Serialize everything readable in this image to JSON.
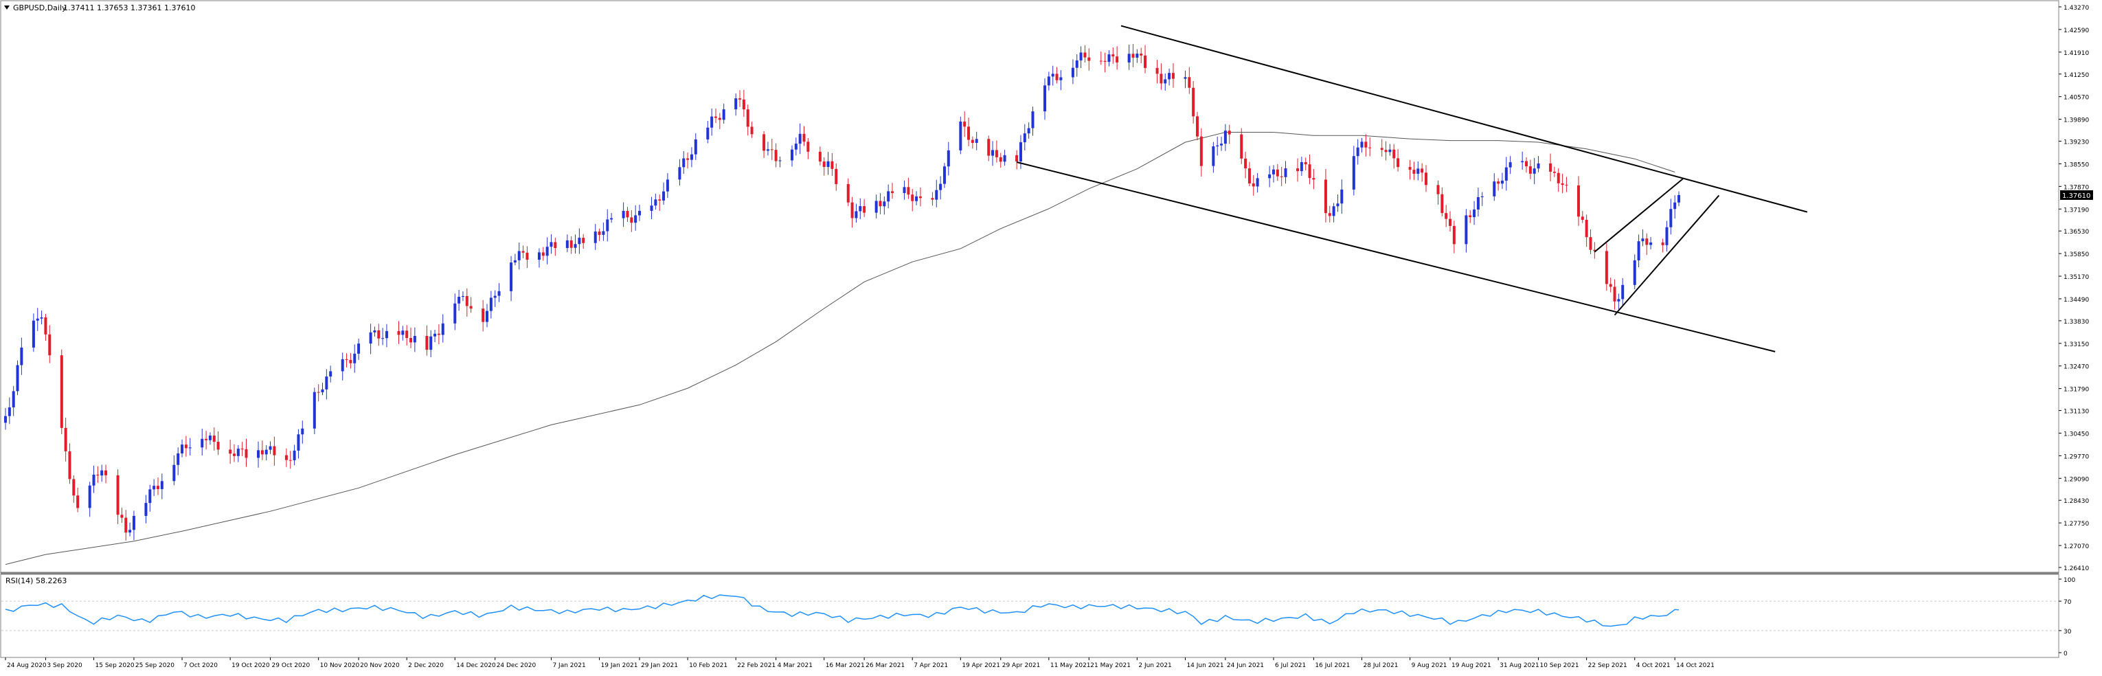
{
  "main_chart": {
    "symbol_label": "GBPUSD,Daily",
    "ohlc_label": "1.37411 1.37653 1.37361 1.37610",
    "current_price_label": "1.37610"
  },
  "rsi_panel": {
    "label": "RSI(14) 58.2263",
    "levels": [
      100,
      70,
      30,
      0
    ]
  },
  "colors": {
    "bull": "#2134d6",
    "bear": "#e21d2b",
    "ma": "#555555",
    "trendline": "#000000",
    "rsi_line": "#1e90ff",
    "grid": "#c9c9c9",
    "background": "#ffffff"
  },
  "chart_data": [
    {
      "type": "candlestick",
      "x_tick_labels": [
        "24 Aug 2020",
        "3 Sep 2020",
        "15 Sep 2020",
        "25 Sep 2020",
        "7 Oct 2020",
        "19 Oct 2020",
        "29 Oct 2020",
        "10 Nov 2020",
        "20 Nov 2020",
        "2 Dec 2020",
        "14 Dec 2020",
        "24 Dec 2020",
        "7 Jan 2021",
        "19 Jan 2021",
        "29 Jan 2021",
        "10 Feb 2021",
        "22 Feb 2021",
        "4 Mar 2021",
        "16 Mar 2021",
        "26 Mar 2021",
        "7 Apr 2021",
        "19 Apr 2021",
        "29 Apr 2021",
        "11 May 2021",
        "21 May 2021",
        "2 Jun 2021",
        "14 Jun 2021",
        "24 Jun 2021",
        "6 Jul 2021",
        "16 Jul 2021",
        "28 Jul 2021",
        "9 Aug 2021",
        "19 Aug 2021",
        "31 Aug 2021",
        "10 Sep 2021",
        "22 Sep 2021",
        "4 Oct 2021",
        "14 Oct 2021"
      ],
      "y_tick_labels": [
        "1.43270",
        "1.42590",
        "1.41910",
        "1.41250",
        "1.40570",
        "1.39890",
        "1.39230",
        "1.38550",
        "1.37870",
        "1.37190",
        "1.36530",
        "1.35850",
        "1.35170",
        "1.34490",
        "1.33830",
        "1.33150",
        "1.32470",
        "1.31790",
        "1.31130",
        "1.30450",
        "1.29770",
        "1.29090",
        "1.28430",
        "1.27750",
        "1.27070",
        "1.26410"
      ],
      "ylim": [
        1.2641,
        1.4327
      ],
      "close_path": [
        [
          "24 Aug 2020",
          1.3085
        ],
        [
          "28 Aug 2020",
          1.33
        ],
        [
          "2 Sep 2020",
          1.34
        ],
        [
          "8 Sep 2020",
          1.299
        ],
        [
          "11 Sep 2020",
          1.28
        ],
        [
          "17 Sep 2020",
          1.295
        ],
        [
          "23 Sep 2020",
          1.274
        ],
        [
          "29 Sep 2020",
          1.287
        ],
        [
          "5 Oct 2020",
          1.296
        ],
        [
          "12 Oct 2020",
          1.305
        ],
        [
          "19 Oct 2020",
          1.298
        ],
        [
          "27 Oct 2020",
          1.3
        ],
        [
          "2 Nov 2020",
          1.295
        ],
        [
          "9 Nov 2020",
          1.315
        ],
        [
          "16 Nov 2020",
          1.326
        ],
        [
          "23 Nov 2020",
          1.333
        ],
        [
          "30 Nov 2020",
          1.335
        ],
        [
          "7 Dec 2020",
          1.33
        ],
        [
          "14 Dec 2020",
          1.345
        ],
        [
          "21 Dec 2020",
          1.34
        ],
        [
          "28 Dec 2020",
          1.356
        ],
        [
          "4 Jan 2021",
          1.36
        ],
        [
          "11 Jan 2021",
          1.361
        ],
        [
          "18 Jan 2021",
          1.364
        ],
        [
          "25 Jan 2021",
          1.37
        ],
        [
          "1 Feb 2021",
          1.371
        ],
        [
          "8 Feb 2021",
          1.385
        ],
        [
          "15 Feb 2021",
          1.396
        ],
        [
          "22 Feb 2021",
          1.407
        ],
        [
          "26 Feb 2021",
          1.394
        ],
        [
          "4 Mar 2021",
          1.388
        ],
        [
          "10 Mar 2021",
          1.392
        ],
        [
          "17 Mar 2021",
          1.386
        ],
        [
          "23 Mar 2021",
          1.37
        ],
        [
          "29 Mar 2021",
          1.374
        ],
        [
          "6 Apr 2021",
          1.377
        ],
        [
          "12 Apr 2021",
          1.373
        ],
        [
          "19 Apr 2021",
          1.398
        ],
        [
          "26 Apr 2021",
          1.387
        ],
        [
          "3 May 2021",
          1.388
        ],
        [
          "10 May 2021",
          1.41
        ],
        [
          "17 May 2021",
          1.416
        ],
        [
          "24 May 2021",
          1.418
        ],
        [
          "1 Jun 2021",
          1.418
        ],
        [
          "8 Jun 2021",
          1.412
        ],
        [
          "15 Jun 2021",
          1.409
        ],
        [
          "18 Jun 2021",
          1.385
        ],
        [
          "24 Jun 2021",
          1.394
        ],
        [
          "1 Jul 2021",
          1.38
        ],
        [
          "8 Jul 2021",
          1.382
        ],
        [
          "14 Jul 2021",
          1.386
        ],
        [
          "20 Jul 2021",
          1.368
        ],
        [
          "26 Jul 2021",
          1.39
        ],
        [
          "2 Aug 2021",
          1.391
        ],
        [
          "9 Aug 2021",
          1.384
        ],
        [
          "16 Aug 2021",
          1.377
        ],
        [
          "20 Aug 2021",
          1.362
        ],
        [
          "27 Aug 2021",
          1.376
        ],
        [
          "3 Sep 2021",
          1.384
        ],
        [
          "10 Sep 2021",
          1.385
        ],
        [
          "16 Sep 2021",
          1.379
        ],
        [
          "21 Sep 2021",
          1.368
        ],
        [
          "29 Sep 2021",
          1.343
        ],
        [
          "5 Oct 2021",
          1.362
        ],
        [
          "11 Oct 2021",
          1.362
        ],
        [
          "14 Oct 2021",
          1.375
        ],
        [
          "15 Oct 2021",
          1.3761
        ]
      ],
      "moving_average_path": [
        [
          "24 Aug 2020",
          1.265
        ],
        [
          "3 Sep 2020",
          1.268
        ],
        [
          "25 Sep 2020",
          1.272
        ],
        [
          "7 Oct 2020",
          1.275
        ],
        [
          "29 Oct 2020",
          1.281
        ],
        [
          "20 Nov 2020",
          1.288
        ],
        [
          "14 Dec 2020",
          1.298
        ],
        [
          "7 Jan 2021",
          1.307
        ],
        [
          "29 Jan 2021",
          1.313
        ],
        [
          "10 Feb 2021",
          1.318
        ],
        [
          "22 Feb 2021",
          1.325
        ],
        [
          "4 Mar 2021",
          1.332
        ],
        [
          "16 Mar 2021",
          1.342
        ],
        [
          "26 Mar 2021",
          1.35
        ],
        [
          "7 Apr 2021",
          1.356
        ],
        [
          "19 Apr 2021",
          1.36
        ],
        [
          "29 Apr 2021",
          1.366
        ],
        [
          "11 May 2021",
          1.372
        ],
        [
          "21 May 2021",
          1.378
        ],
        [
          "2 Jun 2021",
          1.384
        ],
        [
          "14 Jun 2021",
          1.392
        ],
        [
          "24 Jun 2021",
          1.395
        ],
        [
          "6 Jul 2021",
          1.395
        ],
        [
          "16 Jul 2021",
          1.394
        ],
        [
          "28 Jul 2021",
          1.394
        ],
        [
          "9 Aug 2021",
          1.393
        ],
        [
          "19 Aug 2021",
          1.3925
        ],
        [
          "31 Aug 2021",
          1.3925
        ],
        [
          "10 Sep 2021",
          1.392
        ],
        [
          "22 Sep 2021",
          1.39
        ],
        [
          "4 Oct 2021",
          1.387
        ],
        [
          "14 Oct 2021",
          1.383
        ]
      ],
      "trendlines": [
        [
          [
            "29 May 2021",
            1.427
          ],
          [
            "16 Nov 2021",
            1.371
          ]
        ],
        [
          [
            "3 May 2021",
            1.386
          ],
          [
            "8 Nov 2021",
            1.329
          ]
        ],
        [
          [
            "24 Sep 2021",
            1.359
          ],
          [
            "16 Oct 2021",
            1.381
          ]
        ],
        [
          [
            "29 Sep 2021",
            1.34
          ],
          [
            "25 Oct 2021",
            1.376
          ]
        ]
      ],
      "last_price": 1.3761
    },
    {
      "type": "line",
      "title": "RSI(14) 58.2263",
      "ylim": [
        0,
        100
      ],
      "reference_levels": [
        70,
        30
      ],
      "last_value": 58.2263,
      "values_path": [
        [
          "24 Aug 2020",
          56
        ],
        [
          "31 Aug 2020",
          66
        ],
        [
          "7 Sep 2020",
          64
        ],
        [
          "14 Sep 2020",
          40
        ],
        [
          "21 Sep 2020",
          50
        ],
        [
          "28 Sep 2020",
          42
        ],
        [
          "5 Oct 2020",
          56
        ],
        [
          "12 Oct 2020",
          48
        ],
        [
          "19 Oct 2020",
          52
        ],
        [
          "26 Oct 2020",
          46
        ],
        [
          "2 Nov 2020",
          44
        ],
        [
          "9 Nov 2020",
          57
        ],
        [
          "16 Nov 2020",
          58
        ],
        [
          "23 Nov 2020",
          62
        ],
        [
          "30 Nov 2020",
          58
        ],
        [
          "7 Dec 2020",
          48
        ],
        [
          "14 Dec 2020",
          56
        ],
        [
          "21 Dec 2020",
          50
        ],
        [
          "28 Dec 2020",
          62
        ],
        [
          "4 Jan 2021",
          58
        ],
        [
          "11 Jan 2021",
          55
        ],
        [
          "18 Jan 2021",
          60
        ],
        [
          "25 Jan 2021",
          58
        ],
        [
          "1 Feb 2021",
          62
        ],
        [
          "8 Feb 2021",
          68
        ],
        [
          "15 Feb 2021",
          76
        ],
        [
          "22 Feb 2021",
          78
        ],
        [
          "1 Mar 2021",
          58
        ],
        [
          "8 Mar 2021",
          52
        ],
        [
          "15 Mar 2021",
          54
        ],
        [
          "22 Mar 2021",
          44
        ],
        [
          "29 Mar 2021",
          48
        ],
        [
          "5 Apr 2021",
          52
        ],
        [
          "12 Apr 2021",
          50
        ],
        [
          "19 Apr 2021",
          62
        ],
        [
          "26 Apr 2021",
          56
        ],
        [
          "3 May 2021",
          54
        ],
        [
          "10 May 2021",
          66
        ],
        [
          "17 May 2021",
          62
        ],
        [
          "24 May 2021",
          64
        ],
        [
          "1 Jun 2021",
          62
        ],
        [
          "8 Jun 2021",
          58
        ],
        [
          "15 Jun 2021",
          54
        ],
        [
          "18 Jun 2021",
          40
        ],
        [
          "24 Jun 2021",
          48
        ],
        [
          "1 Jul 2021",
          42
        ],
        [
          "8 Jul 2021",
          46
        ],
        [
          "14 Jul 2021",
          50
        ],
        [
          "20 Jul 2021",
          40
        ],
        [
          "26 Jul 2021",
          56
        ],
        [
          "2 Aug 2021",
          58
        ],
        [
          "9 Aug 2021",
          52
        ],
        [
          "16 Aug 2021",
          46
        ],
        [
          "20 Aug 2021",
          40
        ],
        [
          "27 Aug 2021",
          50
        ],
        [
          "3 Sep 2021",
          58
        ],
        [
          "10 Sep 2021",
          56
        ],
        [
          "16 Sep 2021",
          50
        ],
        [
          "21 Sep 2021",
          46
        ],
        [
          "29 Sep 2021",
          34
        ],
        [
          "5 Oct 2021",
          48
        ],
        [
          "11 Oct 2021",
          50
        ],
        [
          "15 Oct 2021",
          58
        ]
      ]
    }
  ]
}
